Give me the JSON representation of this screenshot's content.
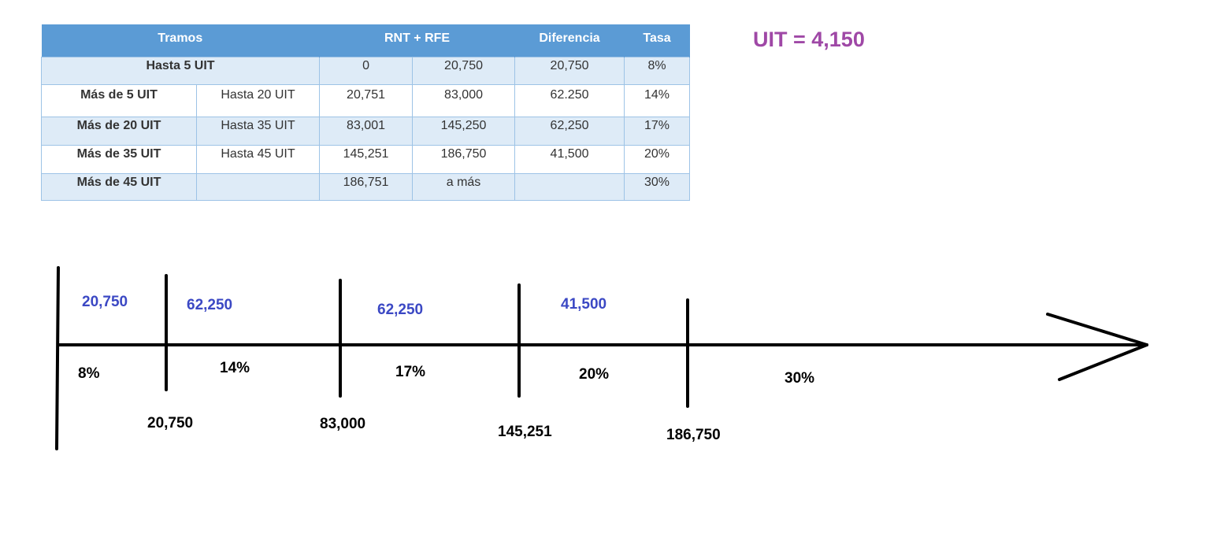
{
  "uit": {
    "label": "UIT = 4,150"
  },
  "table": {
    "headers": {
      "tramos": "Tramos",
      "rnt_rfe": "RNT + RFE",
      "diferencia": "Diferencia",
      "tasa": "Tasa"
    },
    "rows": [
      {
        "tramo": "Hasta 5 UIT",
        "hasta": "",
        "from": "0",
        "to": "20,750",
        "diferencia": "20,750",
        "tasa": "8%"
      },
      {
        "tramo": "Más de 5 UIT",
        "hasta": "Hasta 20 UIT",
        "from": "20,751",
        "to": "83,000",
        "diferencia": "62.250",
        "tasa": "14%"
      },
      {
        "tramo": "Más de 20 UIT",
        "hasta": "Hasta 35 UIT",
        "from": "83,001",
        "to": "145,250",
        "diferencia": "62,250",
        "tasa": "17%"
      },
      {
        "tramo": "Más de 35 UIT",
        "hasta": "Hasta 45 UIT",
        "from": "145,251",
        "to": "186,750",
        "diferencia": "41,500",
        "tasa": "20%"
      },
      {
        "tramo": "Más de 45 UIT",
        "hasta": "",
        "from": "186,751",
        "to": "a más",
        "diferencia": "",
        "tasa": "30%"
      }
    ]
  },
  "timeline": {
    "differences": [
      "20,750",
      "62,250",
      "62,250",
      "41,500"
    ],
    "rates": [
      "8%",
      "14%",
      "17%",
      "20%",
      "30%"
    ],
    "boundaries": [
      "20,750",
      "83,000",
      "145,251",
      "186,750"
    ],
    "colors": {
      "line": "#000000",
      "difference_text": "#3b48c4",
      "label_text": "#000000"
    }
  }
}
